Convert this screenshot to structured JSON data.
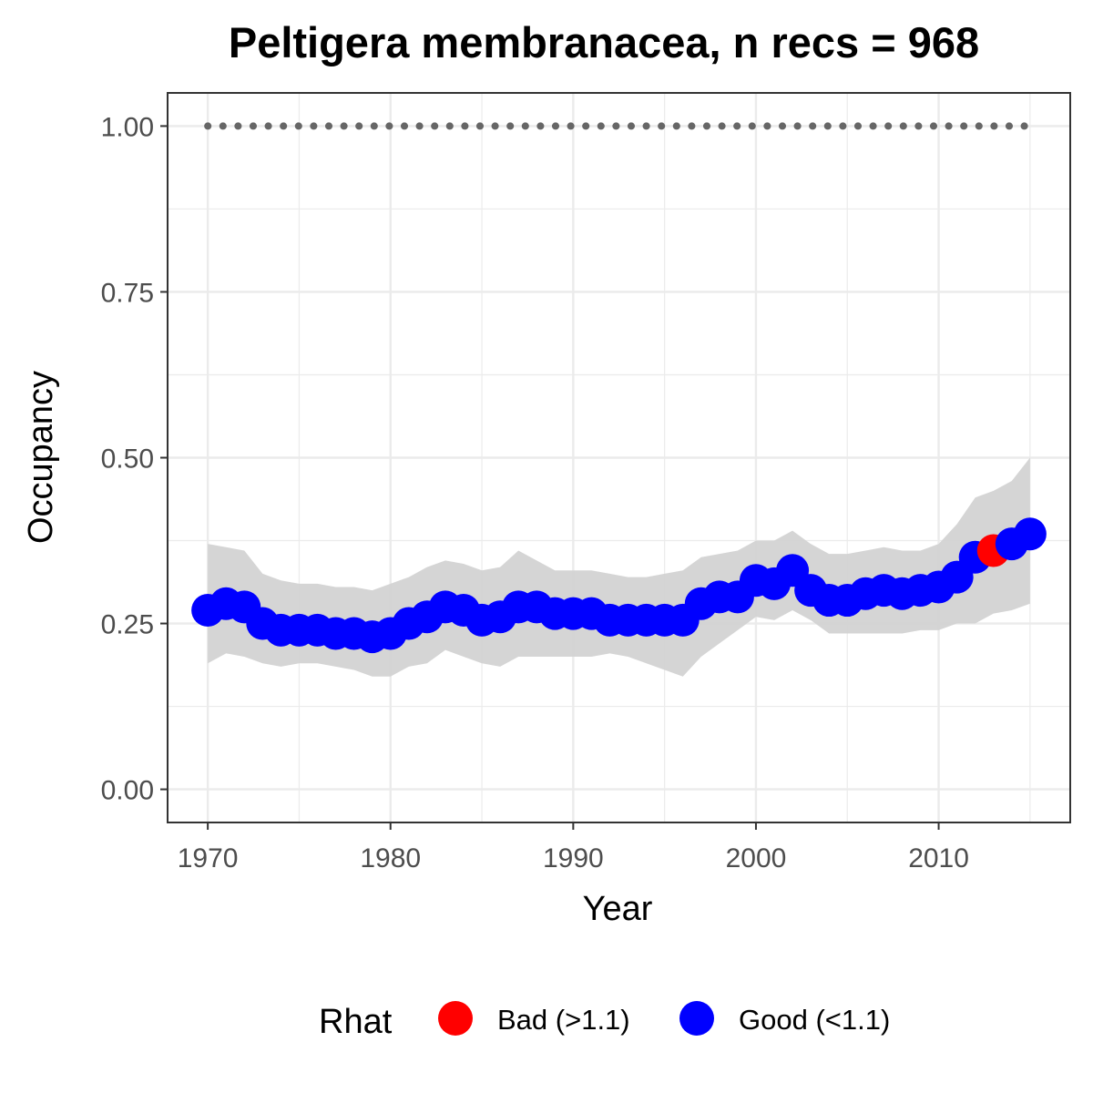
{
  "chart_data": {
    "type": "line",
    "title": "Peltigera membranacea, n recs = 968",
    "xlabel": "Year",
    "ylabel": "Occupancy",
    "xlim": [
      1967.8,
      2017.2
    ],
    "ylim": [
      -0.05,
      1.05
    ],
    "x_ticks": [
      1970,
      1980,
      1990,
      2000,
      2010
    ],
    "x_tick_labels": [
      "1970",
      "1980",
      "1990",
      "2000",
      "2010"
    ],
    "y_ticks": [
      0,
      0.25,
      0.5,
      0.75,
      1
    ],
    "y_tick_labels": [
      "0.00",
      "0.25",
      "0.50",
      "0.75",
      "1.00"
    ],
    "grid": true,
    "legend": {
      "title": "Rhat",
      "position": "bottom",
      "items": [
        {
          "label": "Bad (>1.1)",
          "color": "#ff0000"
        },
        {
          "label": "Good (<1.1)",
          "color": "#0000ff"
        }
      ]
    },
    "colors": {
      "good": "#0000ff",
      "bad": "#ff0000",
      "ribbon": "#d3d3d3",
      "reference": "#666666",
      "grid": "#ebebeb",
      "panel_border": "#333333"
    },
    "reference_line": {
      "y": 1.0,
      "style": "dotted"
    },
    "x": [
      1970,
      1971,
      1972,
      1973,
      1974,
      1975,
      1976,
      1977,
      1978,
      1979,
      1980,
      1981,
      1982,
      1983,
      1984,
      1985,
      1986,
      1987,
      1988,
      1989,
      1990,
      1991,
      1992,
      1993,
      1994,
      1995,
      1996,
      1997,
      1998,
      1999,
      2000,
      2001,
      2002,
      2003,
      2004,
      2005,
      2006,
      2007,
      2008,
      2009,
      2010,
      2011,
      2012,
      2013,
      2014,
      2015
    ],
    "occupancy": [
      0.27,
      0.28,
      0.275,
      0.25,
      0.24,
      0.24,
      0.24,
      0.235,
      0.235,
      0.23,
      0.235,
      0.25,
      0.26,
      0.275,
      0.27,
      0.255,
      0.26,
      0.275,
      0.275,
      0.265,
      0.265,
      0.265,
      0.255,
      0.255,
      0.255,
      0.255,
      0.255,
      0.28,
      0.29,
      0.29,
      0.315,
      0.31,
      0.33,
      0.3,
      0.285,
      0.285,
      0.295,
      0.3,
      0.295,
      0.3,
      0.305,
      0.32,
      0.35,
      0.36,
      0.37,
      0.385
    ],
    "lower_ci": [
      0.19,
      0.205,
      0.2,
      0.19,
      0.185,
      0.19,
      0.19,
      0.185,
      0.18,
      0.17,
      0.17,
      0.185,
      0.19,
      0.21,
      0.2,
      0.19,
      0.185,
      0.2,
      0.2,
      0.2,
      0.2,
      0.2,
      0.205,
      0.2,
      0.19,
      0.18,
      0.17,
      0.2,
      0.22,
      0.24,
      0.26,
      0.255,
      0.27,
      0.255,
      0.235,
      0.235,
      0.235,
      0.235,
      0.235,
      0.24,
      0.24,
      0.25,
      0.25,
      0.265,
      0.27,
      0.28
    ],
    "upper_ci": [
      0.37,
      0.365,
      0.36,
      0.325,
      0.315,
      0.31,
      0.31,
      0.305,
      0.305,
      0.3,
      0.31,
      0.32,
      0.335,
      0.345,
      0.34,
      0.33,
      0.335,
      0.36,
      0.345,
      0.33,
      0.33,
      0.33,
      0.325,
      0.32,
      0.32,
      0.325,
      0.33,
      0.35,
      0.355,
      0.36,
      0.375,
      0.375,
      0.39,
      0.37,
      0.355,
      0.355,
      0.36,
      0.365,
      0.36,
      0.36,
      0.37,
      0.4,
      0.44,
      0.45,
      0.465,
      0.5
    ],
    "rhat_status": [
      "good",
      "good",
      "good",
      "good",
      "good",
      "good",
      "good",
      "good",
      "good",
      "good",
      "good",
      "good",
      "good",
      "good",
      "good",
      "good",
      "good",
      "good",
      "good",
      "good",
      "good",
      "good",
      "good",
      "good",
      "good",
      "good",
      "good",
      "good",
      "good",
      "good",
      "good",
      "good",
      "good",
      "good",
      "good",
      "good",
      "good",
      "good",
      "good",
      "good",
      "good",
      "good",
      "good",
      "bad",
      "good",
      "good"
    ]
  }
}
